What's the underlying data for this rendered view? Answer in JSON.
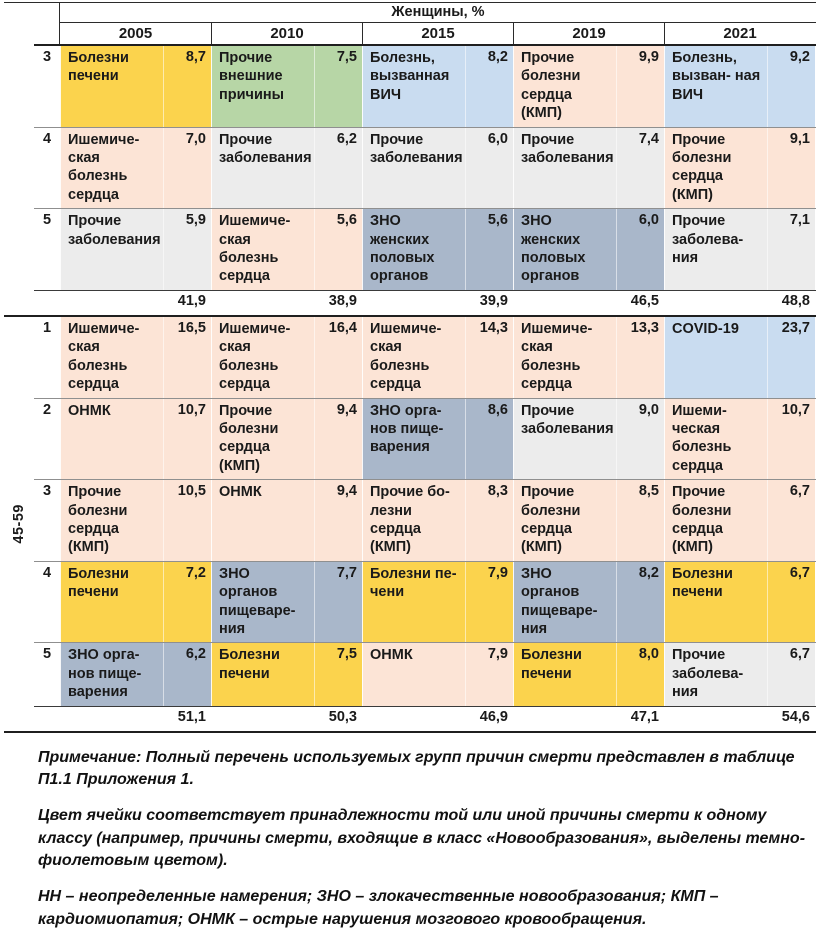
{
  "header": {
    "group_title": "Женщины, %",
    "years": [
      "2005",
      "2010",
      "2015",
      "2019",
      "2021"
    ]
  },
  "colors": {
    "liver": "#fbd34d",
    "heart": "#fce4d6",
    "external": "#b7d6a6",
    "infection": "#c9dcf0",
    "other": "#ececec",
    "neoplasm": "#a9b7ca"
  },
  "sections": [
    {
      "age_label": "",
      "rows": [
        {
          "rank": "3",
          "cells": [
            {
              "cause": "Болезни печени",
              "value": "8,7",
              "cls": "liver"
            },
            {
              "cause": "Прочие внешние причины",
              "value": "7,5",
              "cls": "external"
            },
            {
              "cause": "Болезнь, вызванная ВИЧ",
              "value": "8,2",
              "cls": "infection"
            },
            {
              "cause": "Прочие болезни сердца (КМП)",
              "value": "9,9",
              "cls": "heart"
            },
            {
              "cause": "Болезнь, вызван- ная ВИЧ",
              "value": "9,2",
              "cls": "infection"
            }
          ]
        },
        {
          "rank": "4",
          "cells": [
            {
              "cause": "Ишемиче- ская болезнь сердца",
              "value": "7,0",
              "cls": "heart"
            },
            {
              "cause": "Прочие заболевания",
              "value": "6,2",
              "cls": "other"
            },
            {
              "cause": "Прочие заболевания",
              "value": "6,0",
              "cls": "other"
            },
            {
              "cause": "Прочие заболевания",
              "value": "7,4",
              "cls": "other"
            },
            {
              "cause": "Прочие болезни сердца (КМП)",
              "value": "9,1",
              "cls": "heart"
            }
          ]
        },
        {
          "rank": "5",
          "cells": [
            {
              "cause": "Прочие заболевания",
              "value": "5,9",
              "cls": "other"
            },
            {
              "cause": "Ишемиче- ская болезнь сердца",
              "value": "5,6",
              "cls": "heart"
            },
            {
              "cause": "ЗНО женских половых органов",
              "value": "5,6",
              "cls": "neoplasm"
            },
            {
              "cause": "ЗНО женских половых органов",
              "value": "6,0",
              "cls": "neoplasm"
            },
            {
              "cause": "Прочие заболева- ния",
              "value": "7,1",
              "cls": "other"
            }
          ]
        }
      ],
      "totals": [
        "41,9",
        "38,9",
        "39,9",
        "46,5",
        "48,8"
      ]
    },
    {
      "age_label": "45-59",
      "rows": [
        {
          "rank": "1",
          "cells": [
            {
              "cause": "Ишемиче- ская болезнь сердца",
              "value": "16,5",
              "cls": "heart"
            },
            {
              "cause": "Ишемиче- ская болезнь сердца",
              "value": "16,4",
              "cls": "heart"
            },
            {
              "cause": "Ишемиче- ская болезнь сердца",
              "value": "14,3",
              "cls": "heart"
            },
            {
              "cause": "Ишемиче- ская болезнь сердца",
              "value": "13,3",
              "cls": "heart"
            },
            {
              "cause": "COVID-19",
              "value": "23,7",
              "cls": "infection"
            }
          ]
        },
        {
          "rank": "2",
          "cells": [
            {
              "cause": "ОНМК",
              "value": "10,7",
              "cls": "heart"
            },
            {
              "cause": "Прочие болезни сердца (КМП)",
              "value": "9,4",
              "cls": "heart"
            },
            {
              "cause": "ЗНО орга- нов пище- варения",
              "value": "8,6",
              "cls": "neoplasm"
            },
            {
              "cause": "Прочие заболевания",
              "value": "9,0",
              "cls": "other"
            },
            {
              "cause": "Ишеми- ческая болезнь сердца",
              "value": "10,7",
              "cls": "heart"
            }
          ]
        },
        {
          "rank": "3",
          "cells": [
            {
              "cause": "Прочие болезни сердца (КМП)",
              "value": "10,5",
              "cls": "heart"
            },
            {
              "cause": "ОНМК",
              "value": "9,4",
              "cls": "heart"
            },
            {
              "cause": "Прочие бо- лезни сердца (КМП)",
              "value": "8,3",
              "cls": "heart"
            },
            {
              "cause": "Прочие болезни сердца (КМП)",
              "value": "8,5",
              "cls": "heart"
            },
            {
              "cause": "Прочие болезни сердца (КМП)",
              "value": "6,7",
              "cls": "heart"
            }
          ]
        },
        {
          "rank": "4",
          "cells": [
            {
              "cause": "Болезни печени",
              "value": "7,2",
              "cls": "liver"
            },
            {
              "cause": "ЗНО органов пищеваре- ния",
              "value": "7,7",
              "cls": "neoplasm"
            },
            {
              "cause": "Болезни пе- чени",
              "value": "7,9",
              "cls": "liver"
            },
            {
              "cause": "ЗНО органов пищеваре- ния",
              "value": "8,2",
              "cls": "neoplasm"
            },
            {
              "cause": "Болезни печени",
              "value": "6,7",
              "cls": "liver"
            }
          ]
        },
        {
          "rank": "5",
          "cells": [
            {
              "cause": "ЗНО орга- нов пище- варения",
              "value": "6,2",
              "cls": "neoplasm"
            },
            {
              "cause": "Болезни печени",
              "value": "7,5",
              "cls": "liver"
            },
            {
              "cause": "ОНМК",
              "value": "7,9",
              "cls": "heart"
            },
            {
              "cause": "Болезни печени",
              "value": "8,0",
              "cls": "liver"
            },
            {
              "cause": "Прочие заболева- ния",
              "value": "6,7",
              "cls": "other"
            }
          ]
        }
      ],
      "totals": [
        "51,1",
        "50,3",
        "46,9",
        "47,1",
        "54,6"
      ]
    }
  ],
  "notes": [
    "Примечание: Полный перечень используемых групп причин смерти представлен в таблице П1.1 Приложения 1.",
    "Цвет ячейки соответствует принадлежности той или иной причины смерти к одному классу (например, причины смерти, входящие в класс «Новообразования», выделены темно-фиолетовым цветом).",
    "НН – неопределенные намерения; ЗНО – злокачественные новообразования; КМП – кардиомиопатия; ОНМК – острые нарушения мозгового кровообращения."
  ]
}
